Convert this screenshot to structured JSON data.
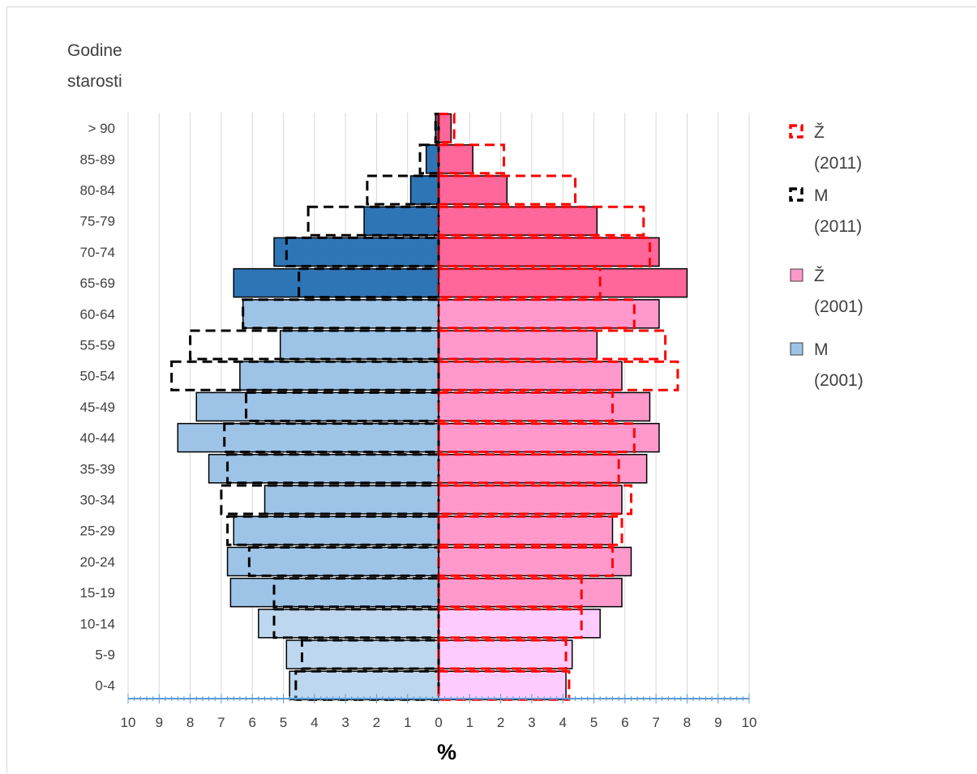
{
  "chart_data": {
    "type": "bar",
    "orientation": "horizontal-population-pyramid",
    "title": "",
    "ylabel_lines": [
      "Godine",
      "starosti"
    ],
    "xlabel": "%",
    "xlim": [
      -10,
      10
    ],
    "x_tick_labels": [
      "10",
      "9",
      "8",
      "7",
      "6",
      "5",
      "4",
      "3",
      "2",
      "1",
      "0",
      "1",
      "2",
      "3",
      "4",
      "5",
      "6",
      "7",
      "8",
      "9",
      "10"
    ],
    "grid": true,
    "legend_position": "right",
    "categories": [
      "0-4",
      "5-9",
      "10-14",
      "15-19",
      "20-24",
      "25-29",
      "30-34",
      "35-39",
      "40-44",
      "45-49",
      "50-54",
      "55-59",
      "60-64",
      "65-69",
      "70-74",
      "75-79",
      "80-84",
      "85-89",
      "> 90"
    ],
    "series": [
      {
        "name": "M (2001)",
        "side": "left",
        "style": "filled",
        "values": [
          4.8,
          4.9,
          5.8,
          6.7,
          6.8,
          6.6,
          5.6,
          7.4,
          8.4,
          7.8,
          6.4,
          5.1,
          6.3,
          6.6,
          5.3,
          2.4,
          0.9,
          0.4,
          0.1
        ]
      },
      {
        "name": "Ž (2001)",
        "side": "right",
        "style": "filled",
        "values": [
          4.1,
          4.3,
          5.2,
          5.9,
          6.2,
          5.6,
          5.9,
          6.7,
          7.1,
          6.8,
          5.9,
          5.1,
          7.1,
          8.0,
          7.1,
          5.1,
          2.2,
          1.1,
          0.4
        ]
      },
      {
        "name": "M (2011)",
        "side": "left",
        "style": "dashed-outline",
        "values": [
          4.6,
          4.4,
          5.3,
          5.3,
          6.1,
          6.8,
          7.0,
          6.8,
          6.9,
          6.2,
          8.6,
          8.0,
          6.3,
          4.5,
          4.9,
          4.2,
          2.3,
          0.6,
          0.1
        ]
      },
      {
        "name": "Ž (2011)",
        "side": "right",
        "style": "dashed-outline",
        "values": [
          4.2,
          4.1,
          4.6,
          4.6,
          5.6,
          5.9,
          6.2,
          5.8,
          6.3,
          5.6,
          7.7,
          7.3,
          6.3,
          5.2,
          6.8,
          6.6,
          4.4,
          2.1,
          0.5
        ]
      }
    ],
    "colors": {
      "m_light": "#bdd7ee",
      "m_mid": "#9dc3e6",
      "m_dark": "#2e75b6",
      "f_light": "#ffccff",
      "f_mid": "#ff99cc",
      "f_dark": "#ff6699",
      "m_2011_line": "#000000",
      "f_2011_line": "#ff0000",
      "axis": "#5b9bd5",
      "grid": "#d9d9d9"
    },
    "color_bands": [
      {
        "from": 0,
        "to": 2,
        "shade": "light"
      },
      {
        "from": 3,
        "to": 12,
        "shade": "mid"
      },
      {
        "from": 13,
        "to": 18,
        "shade": "dark"
      }
    ]
  },
  "legend": [
    {
      "label_line1": "Ž",
      "label_line2": "(2011)",
      "key": "f2011"
    },
    {
      "label_line1": "M",
      "label_line2": "(2011)",
      "key": "m2011"
    },
    {
      "label_line1": "Ž",
      "label_line2": "(2001)",
      "key": "f2001"
    },
    {
      "label_line1": "M",
      "label_line2": "(2001)",
      "key": "m2001"
    }
  ]
}
